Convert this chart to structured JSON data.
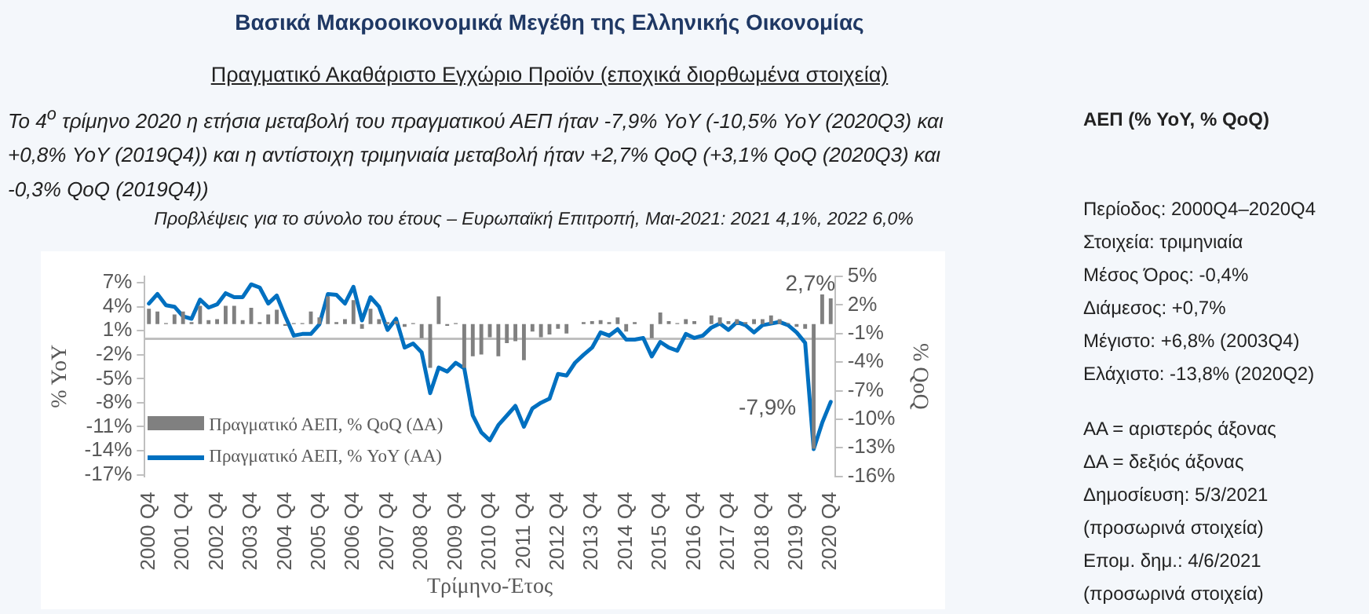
{
  "chart_data": {
    "type": "bar",
    "title": "Βασικά Μακροοικονομικά Μεγέθη της Ελληνικής Οικονομίας",
    "subtitle": "Πραγματικό Ακαθάριστο Εγχώριο Προϊόν (εποχικά διορθωμένα στοιχεία)",
    "xlabel": "Τρίμηνο-Έτος",
    "ylabel": "% YoY",
    "y2label": "% QoQ",
    "annotations": [
      "Το 4$^{ο}$ τρίμηνο 2020 η ετήσια μεταβολή του πραγματικού ΑΕΠ ήταν -7,9% YoY (-10,5% YoY (2020Q3) και +0,8% YoY (2019Q4)) και η αντίστοιχη τριμηνιαία μεταβολή ήταν +2,7% QoQ (+3,1% QoQ (2020Q3) και -0,3% QoQ (2019Q4))",
      "Προβλέψεις για το σύνολο του έτους – Ευρωπαϊκή Επιτροπή, Μαι-2021: 2021 4,1%, 2022 6,0%",
      "ΑΕΠ (% YoY, % QoQ)",
      "Περίοδος: 2000Q4–2020Q4",
      "Στοιχεία: τριμηνιαία",
      "Μέσος Όρος: -0,4%",
      "Διάμεσος: +0,7%",
      "Μέγιστο: +6,8% (2003Q4)",
      "Ελάχιστο: -13,8% (2020Q2)",
      "ΑΑ = αριστερός άξονας",
      "ΔΑ = δεξιός άξονας",
      "Δημοσίευση: 5/3/2021 (προσωρινά στοιχεία)",
      "Επομ. δημ.: 4/6/2021 (προσωρινά στοιχεία)"
    ],
    "categories": [
      "2000 Q4",
      null,
      null,
      null,
      "2001 Q4",
      null,
      null,
      null,
      "2002 Q4",
      null,
      null,
      null,
      "2003 Q4",
      null,
      null,
      null,
      "2004 Q4",
      null,
      null,
      null,
      "2005 Q4",
      null,
      null,
      null,
      "2006 Q4",
      null,
      null,
      null,
      "2007 Q4",
      null,
      null,
      null,
      "2008 Q4",
      null,
      null,
      null,
      "2009 Q4",
      null,
      null,
      null,
      "2010 Q4",
      null,
      null,
      null,
      "2011 Q4",
      null,
      null,
      null,
      "2012 Q4",
      null,
      null,
      null,
      "2013 Q4",
      null,
      null,
      null,
      "2014 Q4",
      null,
      null,
      null,
      "2015 Q4",
      null,
      null,
      null,
      "2016 Q4",
      null,
      null,
      null,
      "2017 Q4",
      null,
      null,
      null,
      "2018 Q4",
      null,
      null,
      null,
      "2019 Q4",
      null,
      null,
      null,
      "2020 Q4"
    ],
    "series": [
      {
        "name": "Πραγματικό ΑΕΠ, % QoQ (ΔΑ)",
        "type": "bar",
        "axis": "y2",
        "color": "#808080",
        "values": [
          1.6,
          1.3,
          0.1,
          1.0,
          1.3,
          0.2,
          1.9,
          0.4,
          0.5,
          1.9,
          1.9,
          0.4,
          1.7,
          0.2,
          1.0,
          1.5,
          -0.2,
          0.1,
          0.1,
          1.3,
          0.7,
          2.9,
          0.2,
          0.5,
          2.5,
          -0.5,
          1.6,
          0.5,
          0.2,
          0.3,
          -0.3,
          0.1,
          -1.5,
          -4.6,
          2.9,
          -0.2,
          0.1,
          -4.6,
          -3.4,
          -3.2,
          -1.4,
          -3.4,
          -2.0,
          -1.8,
          -3.8,
          -0.8,
          -1.4,
          -1.1,
          -0.5,
          -1.0,
          0.0,
          0.2,
          0.3,
          0.4,
          0.2,
          0.7,
          -0.8,
          0.2,
          0.0,
          -1.5,
          1.2,
          0.3,
          0.1,
          0.5,
          0.3,
          0.0,
          0.9,
          0.7,
          0.3,
          0.5,
          0.2,
          0.5,
          0.5,
          0.9,
          0.5,
          0.1,
          -0.3,
          -0.5,
          -13.1,
          3.1,
          2.7
        ],
        "value_labels": [
          null,
          null,
          null,
          null,
          null,
          null,
          null,
          null,
          null,
          null,
          null,
          null,
          null,
          null,
          null,
          null,
          null,
          null,
          null,
          null,
          null,
          null,
          null,
          null,
          null,
          null,
          null,
          null,
          null,
          null,
          null,
          null,
          null,
          null,
          null,
          null,
          null,
          null,
          null,
          null,
          null,
          null,
          null,
          null,
          null,
          null,
          null,
          null,
          null,
          null,
          null,
          null,
          null,
          null,
          null,
          null,
          null,
          null,
          null,
          null,
          null,
          null,
          null,
          null,
          null,
          null,
          null,
          null,
          null,
          null,
          null,
          null,
          null,
          null,
          null,
          null,
          null,
          null,
          null,
          null,
          "2,7%"
        ]
      },
      {
        "name": "Πραγματικό ΑΕΠ, % YoY (ΑΑ)",
        "type": "line",
        "color": "#0070c0",
        "values": [
          4.4,
          5.6,
          4.2,
          4.0,
          2.8,
          2.5,
          4.9,
          3.9,
          4.3,
          5.7,
          5.2,
          5.2,
          6.8,
          6.4,
          4.4,
          5.4,
          2.8,
          0.4,
          0.6,
          0.6,
          1.8,
          5.6,
          5.5,
          4.4,
          6.5,
          2.3,
          5.2,
          4.0,
          1.1,
          2.5,
          -1.1,
          -0.6,
          -1.7,
          -6.8,
          -3.6,
          -4.1,
          -3.0,
          -3.7,
          -9.6,
          -11.7,
          -12.7,
          -10.8,
          -9.6,
          -8.4,
          -11.0,
          -8.7,
          -8.0,
          -7.5,
          -4.4,
          -4.6,
          -3.0,
          -2.0,
          -1.1,
          0.8,
          0.4,
          1.2,
          -0.1,
          -0.1,
          0.1,
          -2.2,
          -0.4,
          -1.1,
          -1.5,
          0.6,
          0.1,
          0.4,
          1.4,
          1.9,
          1.1,
          2.1,
          1.7,
          0.8,
          1.7,
          1.9,
          2.1,
          1.7,
          0.8,
          -0.5,
          -13.8,
          -10.5,
          -7.9
        ],
        "value_labels": [
          null,
          null,
          null,
          null,
          null,
          null,
          null,
          null,
          null,
          null,
          null,
          null,
          null,
          null,
          null,
          null,
          null,
          null,
          null,
          null,
          null,
          null,
          null,
          null,
          null,
          null,
          null,
          null,
          null,
          null,
          null,
          null,
          null,
          null,
          null,
          null,
          null,
          null,
          null,
          null,
          null,
          null,
          null,
          null,
          null,
          null,
          null,
          null,
          null,
          null,
          null,
          null,
          null,
          null,
          null,
          null,
          null,
          null,
          null,
          null,
          null,
          null,
          null,
          null,
          null,
          null,
          null,
          null,
          null,
          null,
          null,
          null,
          null,
          null,
          null,
          null,
          null,
          null,
          null,
          null,
          "-7,9%"
        ]
      }
    ],
    "ylim": [
      -17.2,
      7.8
    ],
    "yticks": [
      {
        "value": 7,
        "label": "7%"
      },
      {
        "value": 4,
        "label": "4%"
      },
      {
        "value": 1,
        "label": "1%"
      },
      {
        "value": -2,
        "label": "-2%"
      },
      {
        "value": -5,
        "label": "-5%"
      },
      {
        "value": -8,
        "label": "-8%"
      },
      {
        "value": -11,
        "label": "-11%"
      },
      {
        "value": -14,
        "label": "-14%"
      },
      {
        "value": -17,
        "label": "-17%"
      }
    ],
    "y2lim": [
      -16,
      5
    ],
    "y2ticks": [
      {
        "value": 5,
        "label": "5%"
      },
      {
        "value": 2,
        "label": "2%"
      },
      {
        "value": -1,
        "label": "-1%"
      },
      {
        "value": -4,
        "label": "-4%"
      },
      {
        "value": -7,
        "label": "-7%"
      },
      {
        "value": -10,
        "label": "-10%"
      },
      {
        "value": -13,
        "label": "-13%"
      },
      {
        "value": -16,
        "label": "-16%"
      }
    ],
    "ref_lines": [
      {
        "axis": "y",
        "value": 0,
        "color": "#bfbfbf"
      }
    ],
    "grid": false,
    "legend": "bottom left",
    "marker": "none",
    "line_style": "solid"
  }
}
